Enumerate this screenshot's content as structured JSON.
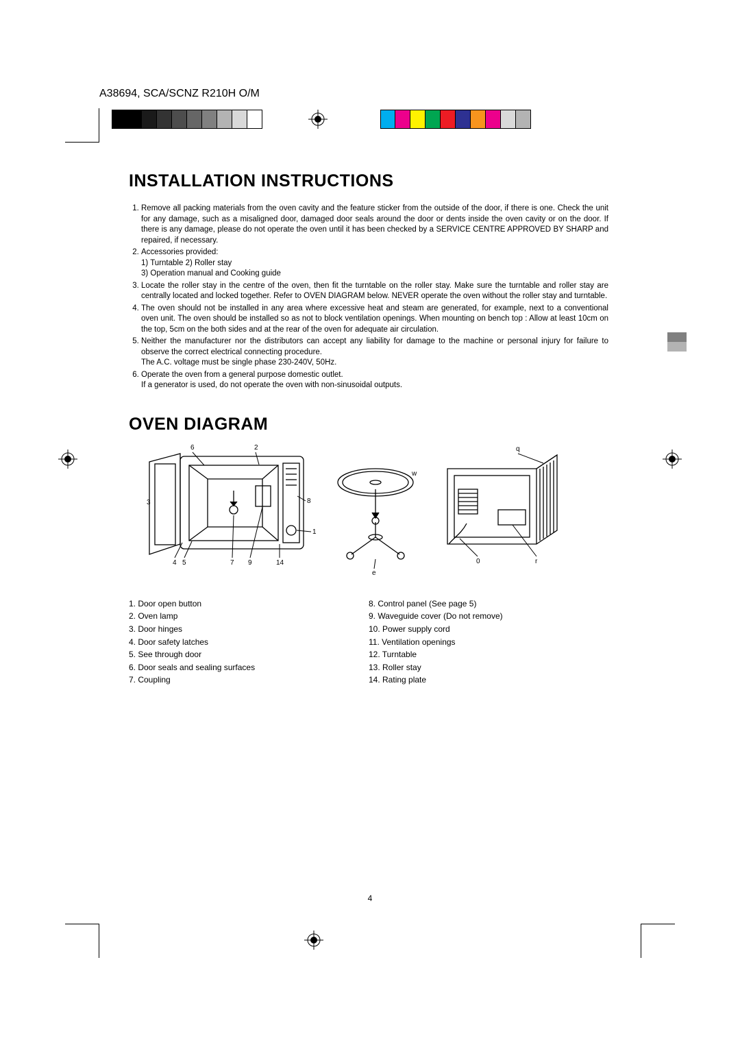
{
  "header_code": "A38694, SCA/SCNZ R210H O/M",
  "colorbar_left": [
    "#000000",
    "#000000",
    "#1a1a1a",
    "#333333",
    "#4d4d4d",
    "#666666",
    "#808080",
    "#b3b3b3",
    "#d9d9d9",
    "#ffffff"
  ],
  "colorbar_right": [
    "#00aeef",
    "#ec008c",
    "#fff200",
    "#00a651",
    "#ed1c24",
    "#2e3192",
    "#f7941e",
    "#ec008c",
    "#d9d9d9",
    "#b3b3b3"
  ],
  "side_squares": [
    "#808080",
    "#b3b3b3"
  ],
  "title_install": "INSTALLATION INSTRUCTIONS",
  "instructions": [
    "Remove all packing materials from the oven cavity and the feature sticker from the outside of the door, if there is one. Check the unit for any damage, such as a misaligned door, damaged door seals around the door or dents inside the oven cavity or on the door. If there is any damage, please do not operate the oven until it has been checked by a SERVICE CENTRE APPROVED BY SHARP and repaired, if necessary.",
    "Accessories provided:\n1) Turntable   2) Roller stay\n3) Operation manual and Cooking guide",
    "Locate the roller stay in the centre of the oven, then fit the turntable on the roller stay. Make sure the turntable and roller stay are centrally located and locked together. Refer to OVEN DIAGRAM below. NEVER operate the oven without the roller stay and turntable.",
    "The oven should not be installed in any area where excessive heat and steam are generated, for example, next to a conventional oven unit. The oven should be installed so as not to block ventilation openings. When mounting on bench top : Allow at least 10cm on the top, 5cm on the both sides and at the rear of the oven for adequate air circulation.",
    "Neither the manufacturer nor the distributors can accept any liability for damage to the machine or personal injury for failure to observe the correct electrical connecting procedure.\nThe A.C. voltage must be single phase 230-240V, 50Hz.",
    "Operate the oven from a general purpose domestic outlet.\nIf a generator is used, do not operate the oven with non-sinusoidal outputs."
  ],
  "title_oven": "OVEN DIAGRAM",
  "diagram": {
    "front_labels": [
      "1",
      "2",
      "3",
      "4",
      "5",
      "6",
      "7",
      "8",
      "9",
      "14"
    ],
    "mid_labels": [
      "w",
      "e"
    ],
    "back_labels": [
      "q",
      "0",
      "r"
    ]
  },
  "parts_left": [
    "1. Door open button",
    "2. Oven lamp",
    "3. Door hinges",
    "4. Door safety latches",
    "5. See through door",
    "6. Door seals and sealing surfaces",
    "7. Coupling"
  ],
  "parts_right": [
    "8. Control panel (See page 5)",
    "9. Waveguide cover (Do not remove)",
    "10. Power supply cord",
    "11. Ventilation openings",
    "12. Turntable",
    "13. Roller stay",
    "14. Rating plate"
  ],
  "page_number": "4"
}
